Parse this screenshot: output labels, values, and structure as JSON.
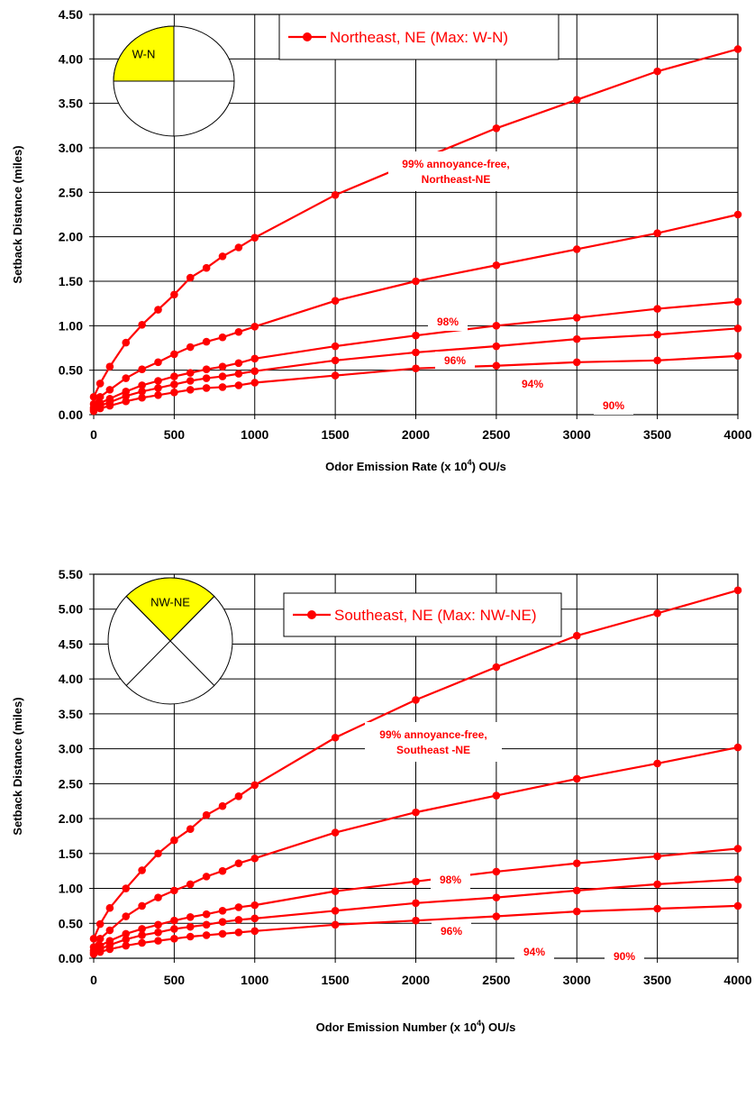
{
  "chart_data": [
    {
      "type": "line",
      "title": "",
      "xlabel_main": "Odor Emission Rate (x 10",
      "xlabel_sup": "4",
      "xlabel_tail": ") OU/s",
      "ylabel": "Setback Distance (miles)",
      "xlim": [
        0,
        4000
      ],
      "ylim": [
        0,
        4.5
      ],
      "x_ticks": [
        "0",
        "500",
        "1000",
        "1500",
        "2000",
        "2500",
        "3000",
        "3500",
        "4000"
      ],
      "y_ticks": [
        "0.00",
        "0.50",
        "1.00",
        "1.50",
        "2.00",
        "2.50",
        "3.00",
        "3.50",
        "4.00",
        "4.50"
      ],
      "grid": true,
      "legend": {
        "position": "top-center",
        "label": "Northeast, NE (Max: W-N)"
      },
      "compass": {
        "label": "W-N",
        "highlight": "W-N",
        "highlight_color": "#ffff00"
      },
      "series_color": "#ff0000",
      "series": [
        {
          "label_line1": "99% annoyance-free,",
          "label_line2": "Northeast-NE",
          "x": [
            0,
            40,
            100,
            200,
            300,
            400,
            500,
            600,
            700,
            800,
            900,
            1000,
            1500,
            2000,
            2500,
            3000,
            3500,
            4000
          ],
          "y": [
            0.2,
            0.35,
            0.54,
            0.81,
            1.01,
            1.18,
            1.35,
            1.54,
            1.65,
            1.78,
            1.88,
            1.99,
            2.47,
            2.85,
            3.22,
            3.54,
            3.86,
            4.11
          ]
        },
        {
          "label_line1": "98%",
          "label_line2": "",
          "x": [
            0,
            40,
            100,
            200,
            300,
            400,
            500,
            600,
            700,
            800,
            900,
            1000,
            1500,
            2000,
            2500,
            3000,
            3500,
            4000
          ],
          "y": [
            0.12,
            0.2,
            0.28,
            0.41,
            0.51,
            0.59,
            0.68,
            0.76,
            0.82,
            0.87,
            0.93,
            0.99,
            1.28,
            1.5,
            1.68,
            1.86,
            2.04,
            2.25
          ]
        },
        {
          "label_line1": "96%",
          "label_line2": "",
          "x": [
            0,
            40,
            100,
            200,
            300,
            400,
            500,
            600,
            700,
            800,
            900,
            1000,
            1500,
            2000,
            2500,
            3000,
            3500,
            4000
          ],
          "y": [
            0.08,
            0.13,
            0.18,
            0.26,
            0.33,
            0.38,
            0.43,
            0.47,
            0.51,
            0.54,
            0.58,
            0.63,
            0.77,
            0.89,
            1.0,
            1.09,
            1.19,
            1.27
          ]
        },
        {
          "label_line1": "94%",
          "label_line2": "",
          "x": [
            0,
            40,
            100,
            200,
            300,
            400,
            500,
            600,
            700,
            800,
            900,
            1000,
            1500,
            2000,
            2500,
            3000,
            3500,
            4000
          ],
          "y": [
            0.06,
            0.1,
            0.14,
            0.21,
            0.26,
            0.3,
            0.34,
            0.38,
            0.41,
            0.43,
            0.46,
            0.49,
            0.61,
            0.7,
            0.77,
            0.85,
            0.9,
            0.97
          ]
        },
        {
          "label_line1": "90%",
          "label_line2": "",
          "x": [
            0,
            40,
            100,
            200,
            300,
            400,
            500,
            600,
            700,
            800,
            900,
            1000,
            1500,
            2000,
            2500,
            3000,
            3500,
            4000
          ],
          "y": [
            0.04,
            0.07,
            0.1,
            0.15,
            0.19,
            0.22,
            0.25,
            0.28,
            0.3,
            0.31,
            0.33,
            0.36,
            0.44,
            0.52,
            0.55,
            0.59,
            0.61,
            0.66
          ]
        }
      ]
    },
    {
      "type": "line",
      "title": "",
      "xlabel_main": "Odor Emission Number (x 10",
      "xlabel_sup": "4",
      "xlabel_tail": ") OU/s",
      "ylabel": "Setback Distance (miles)",
      "xlim": [
        0,
        4000
      ],
      "ylim": [
        0,
        5.5
      ],
      "x_ticks": [
        "0",
        "500",
        "1000",
        "1500",
        "2000",
        "2500",
        "3000",
        "3500",
        "4000"
      ],
      "y_ticks": [
        "0.00",
        "0.50",
        "1.00",
        "1.50",
        "2.00",
        "2.50",
        "3.00",
        "3.50",
        "4.00",
        "4.50",
        "5.00",
        "5.50"
      ],
      "grid": true,
      "legend": {
        "position": "top-center",
        "label": "Southeast, NE (Max: NW-NE)"
      },
      "compass": {
        "label": "NW-NE",
        "highlight": "NW-NE",
        "highlight_color": "#ffff00"
      },
      "series_color": "#ff0000",
      "series": [
        {
          "label_line1": "99% annoyance-free,",
          "label_line2": "Southeast -NE",
          "x": [
            0,
            40,
            100,
            200,
            300,
            400,
            500,
            600,
            700,
            800,
            900,
            1000,
            1500,
            2000,
            2500,
            3000,
            3500,
            4000
          ],
          "y": [
            0.28,
            0.49,
            0.72,
            1.0,
            1.26,
            1.5,
            1.69,
            1.85,
            2.05,
            2.18,
            2.32,
            2.48,
            3.16,
            3.7,
            4.17,
            4.62,
            4.94,
            5.27
          ]
        },
        {
          "label_line1": "98%",
          "label_line2": "",
          "x": [
            0,
            40,
            100,
            200,
            300,
            400,
            500,
            600,
            700,
            800,
            900,
            1000,
            1500,
            2000,
            2500,
            3000,
            3500,
            4000
          ],
          "y": [
            0.16,
            0.28,
            0.4,
            0.6,
            0.75,
            0.87,
            0.97,
            1.06,
            1.17,
            1.25,
            1.36,
            1.43,
            1.8,
            2.09,
            2.33,
            2.57,
            2.79,
            3.02
          ]
        },
        {
          "label_line1": "96%",
          "label_line2": "",
          "x": [
            0,
            40,
            100,
            200,
            300,
            400,
            500,
            600,
            700,
            800,
            900,
            1000,
            1500,
            2000,
            2500,
            3000,
            3500,
            4000
          ],
          "y": [
            0.11,
            0.18,
            0.25,
            0.35,
            0.42,
            0.48,
            0.54,
            0.59,
            0.63,
            0.68,
            0.73,
            0.76,
            0.96,
            1.1,
            1.24,
            1.36,
            1.46,
            1.57
          ]
        },
        {
          "label_line1": "94%",
          "label_line2": "",
          "x": [
            0,
            40,
            100,
            200,
            300,
            400,
            500,
            600,
            700,
            800,
            900,
            1000,
            1500,
            2000,
            2500,
            3000,
            3500,
            4000
          ],
          "y": [
            0.08,
            0.13,
            0.19,
            0.27,
            0.33,
            0.37,
            0.42,
            0.45,
            0.48,
            0.52,
            0.55,
            0.57,
            0.68,
            0.79,
            0.87,
            0.97,
            1.06,
            1.13
          ]
        },
        {
          "label_line1": "90%",
          "label_line2": "",
          "x": [
            0,
            40,
            100,
            200,
            300,
            400,
            500,
            600,
            700,
            800,
            900,
            1000,
            1500,
            2000,
            2500,
            3000,
            3500,
            4000
          ],
          "y": [
            0.06,
            0.09,
            0.13,
            0.18,
            0.22,
            0.25,
            0.28,
            0.31,
            0.33,
            0.35,
            0.37,
            0.39,
            0.48,
            0.54,
            0.6,
            0.67,
            0.71,
            0.75
          ]
        }
      ]
    }
  ]
}
